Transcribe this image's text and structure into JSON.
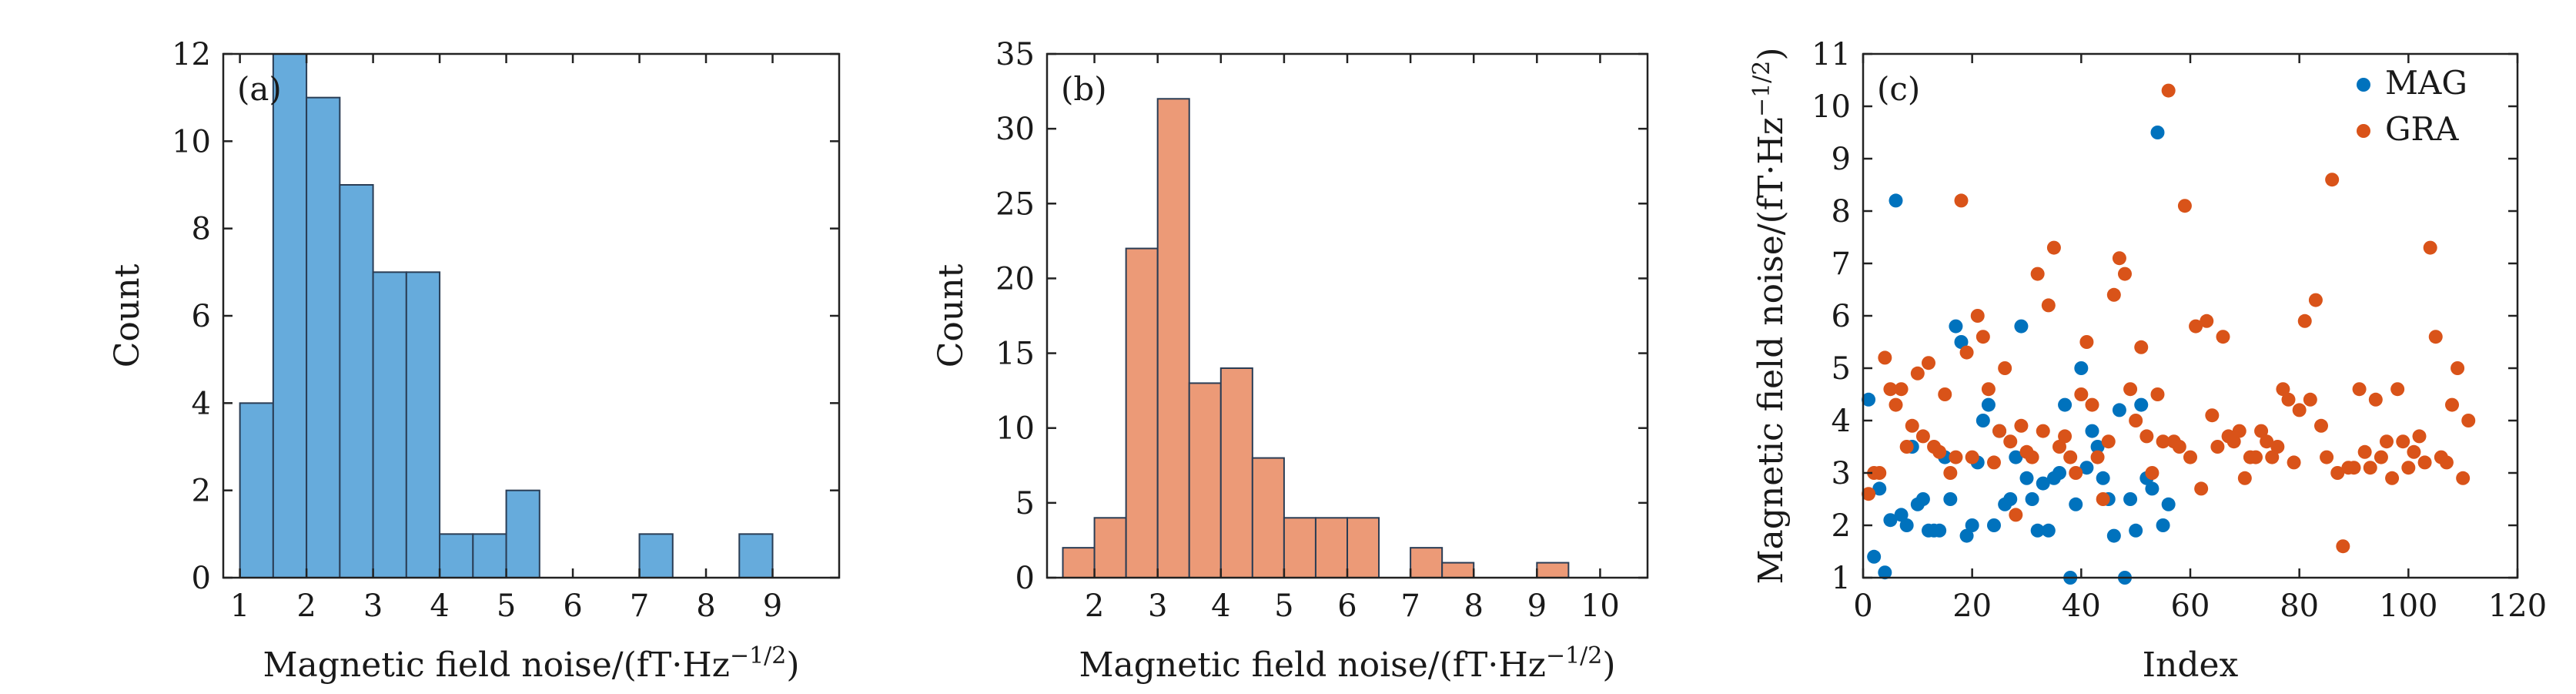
{
  "colors": {
    "mag": "#0072BD",
    "gra": "#D95319",
    "hist_a": "#66ABDC",
    "hist_b": "#EC9A77"
  },
  "chart_data": [
    {
      "type": "bar",
      "panel_label": "(a)",
      "xlabel_base": "Magnetic field noise/(fT·Hz",
      "xlabel_sup": "−1/2",
      "xlabel_end": ")",
      "ylabel": "Count",
      "xlim": [
        0.75,
        10.0
      ],
      "ylim": [
        0,
        12
      ],
      "xticks": [
        1,
        2,
        3,
        4,
        5,
        6,
        7,
        8,
        9
      ],
      "yticks": [
        0,
        2,
        4,
        6,
        8,
        10,
        12
      ],
      "bin_width": 0.5,
      "bins": [
        {
          "x0": 1.0,
          "count": 4
        },
        {
          "x0": 1.5,
          "count": 12
        },
        {
          "x0": 2.0,
          "count": 11
        },
        {
          "x0": 2.5,
          "count": 9
        },
        {
          "x0": 3.0,
          "count": 7
        },
        {
          "x0": 3.5,
          "count": 7
        },
        {
          "x0": 4.0,
          "count": 1
        },
        {
          "x0": 4.5,
          "count": 1
        },
        {
          "x0": 5.0,
          "count": 2
        },
        {
          "x0": 5.5,
          "count": 0
        },
        {
          "x0": 6.0,
          "count": 0
        },
        {
          "x0": 6.5,
          "count": 0
        },
        {
          "x0": 7.0,
          "count": 1
        },
        {
          "x0": 7.5,
          "count": 0
        },
        {
          "x0": 8.0,
          "count": 0
        },
        {
          "x0": 8.5,
          "count": 1
        }
      ]
    },
    {
      "type": "bar",
      "panel_label": "(b)",
      "xlabel_base": "Magnetic field noise/(fT·Hz",
      "xlabel_sup": "−1/2",
      "xlabel_end": ")",
      "ylabel": "Count",
      "xlim": [
        1.25,
        10.75
      ],
      "ylim": [
        0,
        35
      ],
      "xticks": [
        2,
        3,
        4,
        5,
        6,
        7,
        8,
        9,
        10
      ],
      "yticks": [
        0,
        5,
        10,
        15,
        20,
        25,
        30,
        35
      ],
      "bin_width": 0.5,
      "bins": [
        {
          "x0": 1.5,
          "count": 2
        },
        {
          "x0": 2.0,
          "count": 4
        },
        {
          "x0": 2.5,
          "count": 22
        },
        {
          "x0": 3.0,
          "count": 32
        },
        {
          "x0": 3.5,
          "count": 13
        },
        {
          "x0": 4.0,
          "count": 14
        },
        {
          "x0": 4.5,
          "count": 8
        },
        {
          "x0": 5.0,
          "count": 4
        },
        {
          "x0": 5.5,
          "count": 4
        },
        {
          "x0": 6.0,
          "count": 4
        },
        {
          "x0": 6.5,
          "count": 0
        },
        {
          "x0": 7.0,
          "count": 2
        },
        {
          "x0": 7.5,
          "count": 1
        },
        {
          "x0": 8.0,
          "count": 0
        },
        {
          "x0": 8.5,
          "count": 0
        },
        {
          "x0": 9.0,
          "count": 1
        }
      ]
    },
    {
      "type": "scatter",
      "panel_label": "(c)",
      "xlabel": "Index",
      "ylabel_base": "Magnetic field noise/(fT·Hz",
      "ylabel_sup": "−1/2",
      "ylabel_end": ")",
      "xlim": [
        0,
        120
      ],
      "ylim": [
        1,
        11
      ],
      "xticks": [
        0,
        20,
        40,
        60,
        80,
        100,
        120
      ],
      "yticks": [
        1,
        2,
        3,
        4,
        5,
        6,
        7,
        8,
        9,
        10,
        11
      ],
      "legend_position": "top-right",
      "series": [
        {
          "name": "MAG",
          "points": [
            [
              1,
              4.4
            ],
            [
              2,
              1.4
            ],
            [
              3,
              2.7
            ],
            [
              4,
              1.1
            ],
            [
              5,
              2.1
            ],
            [
              6,
              8.2
            ],
            [
              7,
              2.2
            ],
            [
              8,
              2.0
            ],
            [
              9,
              3.5
            ],
            [
              10,
              2.4
            ],
            [
              11,
              2.5
            ],
            [
              12,
              1.9
            ],
            [
              13,
              1.9
            ],
            [
              14,
              1.9
            ],
            [
              15,
              3.3
            ],
            [
              16,
              2.5
            ],
            [
              17,
              5.8
            ],
            [
              18,
              5.5
            ],
            [
              19,
              1.8
            ],
            [
              20,
              2.0
            ],
            [
              21,
              3.2
            ],
            [
              22,
              4.0
            ],
            [
              23,
              4.3
            ],
            [
              24,
              2.0
            ],
            [
              25,
              3.8
            ],
            [
              26,
              2.4
            ],
            [
              27,
              2.5
            ],
            [
              28,
              3.3
            ],
            [
              29,
              5.8
            ],
            [
              30,
              2.9
            ],
            [
              31,
              2.5
            ],
            [
              32,
              1.9
            ],
            [
              33,
              2.8
            ],
            [
              34,
              1.9
            ],
            [
              35,
              2.9
            ],
            [
              36,
              3.0
            ],
            [
              37,
              4.3
            ],
            [
              38,
              1.0
            ],
            [
              39,
              2.4
            ],
            [
              40,
              5.0
            ],
            [
              41,
              3.1
            ],
            [
              42,
              3.8
            ],
            [
              43,
              3.5
            ],
            [
              44,
              2.9
            ],
            [
              45,
              2.5
            ],
            [
              46,
              1.8
            ],
            [
              47,
              4.2
            ],
            [
              48,
              1.0
            ],
            [
              49,
              2.5
            ],
            [
              50,
              1.9
            ],
            [
              51,
              4.3
            ],
            [
              52,
              2.9
            ],
            [
              53,
              2.7
            ],
            [
              54,
              9.5
            ],
            [
              55,
              2.0
            ],
            [
              56,
              2.4
            ]
          ]
        },
        {
          "name": "GRA",
          "points": [
            [
              1,
              2.6
            ],
            [
              2,
              3.0
            ],
            [
              3,
              3.0
            ],
            [
              4,
              5.2
            ],
            [
              5,
              4.6
            ],
            [
              6,
              4.3
            ],
            [
              7,
              4.6
            ],
            [
              8,
              3.5
            ],
            [
              9,
              3.9
            ],
            [
              10,
              4.9
            ],
            [
              11,
              3.7
            ],
            [
              12,
              5.1
            ],
            [
              13,
              3.5
            ],
            [
              14,
              3.4
            ],
            [
              15,
              4.5
            ],
            [
              16,
              3.0
            ],
            [
              17,
              3.3
            ],
            [
              18,
              8.2
            ],
            [
              19,
              5.3
            ],
            [
              20,
              3.3
            ],
            [
              21,
              6.0
            ],
            [
              22,
              5.6
            ],
            [
              23,
              4.6
            ],
            [
              24,
              3.2
            ],
            [
              25,
              3.8
            ],
            [
              26,
              5.0
            ],
            [
              27,
              3.6
            ],
            [
              28,
              2.2
            ],
            [
              29,
              3.9
            ],
            [
              30,
              3.4
            ],
            [
              31,
              3.3
            ],
            [
              32,
              6.8
            ],
            [
              33,
              3.8
            ],
            [
              34,
              6.2
            ],
            [
              35,
              7.3
            ],
            [
              36,
              3.5
            ],
            [
              37,
              3.7
            ],
            [
              38,
              3.3
            ],
            [
              39,
              3.0
            ],
            [
              40,
              4.5
            ],
            [
              41,
              5.5
            ],
            [
              42,
              4.3
            ],
            [
              43,
              3.3
            ],
            [
              44,
              2.5
            ],
            [
              45,
              3.6
            ],
            [
              46,
              6.4
            ],
            [
              47,
              7.1
            ],
            [
              48,
              6.8
            ],
            [
              49,
              4.6
            ],
            [
              50,
              4.0
            ],
            [
              51,
              5.4
            ],
            [
              52,
              3.7
            ],
            [
              53,
              3.0
            ],
            [
              54,
              4.5
            ],
            [
              55,
              3.6
            ],
            [
              56,
              10.3
            ],
            [
              57,
              3.6
            ],
            [
              58,
              3.5
            ],
            [
              59,
              8.1
            ],
            [
              60,
              3.3
            ],
            [
              61,
              5.8
            ],
            [
              62,
              2.7
            ],
            [
              63,
              5.9
            ],
            [
              64,
              4.1
            ],
            [
              65,
              3.5
            ],
            [
              66,
              5.6
            ],
            [
              67,
              3.7
            ],
            [
              68,
              3.6
            ],
            [
              69,
              3.8
            ],
            [
              70,
              2.9
            ],
            [
              71,
              3.3
            ],
            [
              72,
              3.3
            ],
            [
              73,
              3.8
            ],
            [
              74,
              3.6
            ],
            [
              75,
              3.3
            ],
            [
              76,
              3.5
            ],
            [
              77,
              4.6
            ],
            [
              78,
              4.4
            ],
            [
              79,
              3.2
            ],
            [
              80,
              4.2
            ],
            [
              81,
              5.9
            ],
            [
              82,
              4.4
            ],
            [
              83,
              6.3
            ],
            [
              84,
              3.9
            ],
            [
              85,
              3.3
            ],
            [
              86,
              8.6
            ],
            [
              87,
              3.0
            ],
            [
              88,
              1.6
            ],
            [
              89,
              3.1
            ],
            [
              90,
              3.1
            ],
            [
              91,
              4.6
            ],
            [
              92,
              3.4
            ],
            [
              93,
              3.1
            ],
            [
              94,
              4.4
            ],
            [
              95,
              3.3
            ],
            [
              96,
              3.6
            ],
            [
              97,
              2.9
            ],
            [
              98,
              4.6
            ],
            [
              99,
              3.6
            ],
            [
              100,
              3.1
            ],
            [
              101,
              3.4
            ],
            [
              102,
              3.7
            ],
            [
              103,
              3.2
            ],
            [
              104,
              7.3
            ],
            [
              105,
              5.6
            ],
            [
              106,
              3.3
            ],
            [
              107,
              3.2
            ],
            [
              108,
              4.3
            ],
            [
              109,
              5.0
            ],
            [
              110,
              2.9
            ],
            [
              111,
              4.0
            ]
          ]
        }
      ]
    }
  ]
}
